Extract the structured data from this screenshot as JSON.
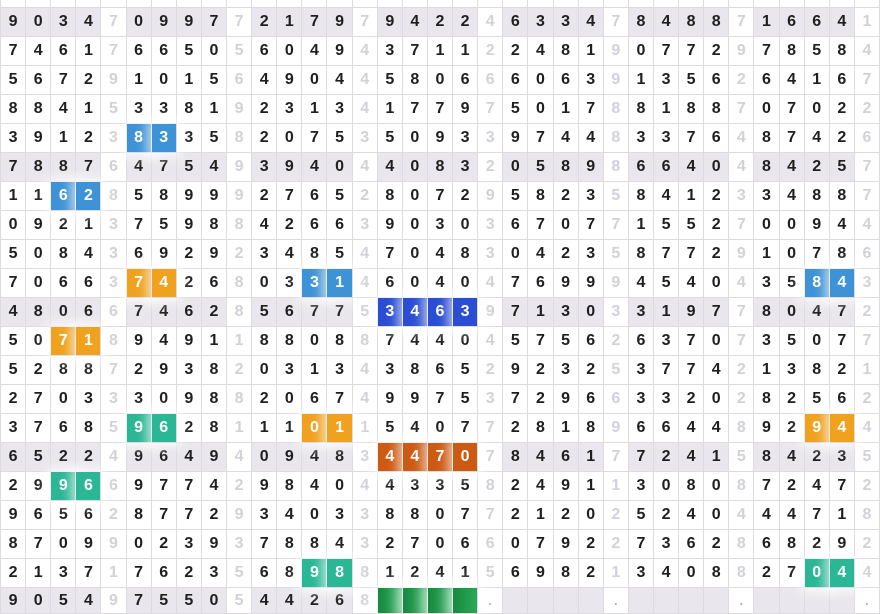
{
  "colors": {
    "highlight_blue": "#3e93d6",
    "highlight_dark_blue": "#2a4dd4",
    "highlight_orange": "#f0a11e",
    "highlight_dark_orange": "#cd5a12",
    "highlight_green": "#2ab795",
    "selection_green_dark": "#178a41",
    "selection_green_light": "#2aa957",
    "shaded_row_bg": "#e9e6ed",
    "grid_border": "#dddae0",
    "digit_color": "#1f1f1f",
    "separator_digit_color": "#d4d0d8"
  },
  "table": {
    "groups_per_row": 7,
    "digits_per_group": 4,
    "rows": [
      {
        "shaded": true,
        "groups": [
          "9034",
          "0997",
          "2179",
          "9422",
          "6334",
          "8488",
          "1664"
        ],
        "seps": [
          "7",
          "7",
          "7",
          "4",
          "7",
          "7",
          "1"
        ],
        "highlights": []
      },
      {
        "shaded": false,
        "groups": [
          "7461",
          "6650",
          "6049",
          "3711",
          "2481",
          "0772",
          "7858"
        ],
        "seps": [
          "7",
          "5",
          "4",
          "2",
          "9",
          "9",
          "4"
        ],
        "highlights": []
      },
      {
        "shaded": false,
        "groups": [
          "5672",
          "1015",
          "4904",
          "5806",
          "6063",
          "1356",
          "6416"
        ],
        "seps": [
          "9",
          "6",
          "4",
          "6",
          "9",
          "2",
          "7"
        ],
        "highlights": []
      },
      {
        "shaded": false,
        "groups": [
          "8841",
          "3381",
          "2313",
          "1779",
          "5017",
          "8188",
          "0702"
        ],
        "seps": [
          "5",
          "9",
          "4",
          "7",
          "8",
          "7",
          "2"
        ],
        "highlights": []
      },
      {
        "shaded": false,
        "groups": [
          "3912",
          "8335",
          "2075",
          "5093",
          "9744",
          "3376",
          "8742"
        ],
        "seps": [
          "3",
          "8",
          "3",
          "3",
          "8",
          "4",
          "6"
        ],
        "highlights": [
          {
            "group": 1,
            "start": 0,
            "len": 2,
            "color": "blue"
          }
        ]
      },
      {
        "shaded": true,
        "groups": [
          "7887",
          "4754",
          "3940",
          "4083",
          "0589",
          "6640",
          "8425"
        ],
        "seps": [
          "6",
          "9",
          "4",
          "2",
          "8",
          "4",
          "7"
        ],
        "highlights": []
      },
      {
        "shaded": false,
        "groups": [
          "1162",
          "5899",
          "2765",
          "8072",
          "5823",
          "8412",
          "3488"
        ],
        "seps": [
          "8",
          "9",
          "2",
          "9",
          "5",
          "3",
          "7"
        ],
        "highlights": [
          {
            "group": 0,
            "start": 2,
            "len": 2,
            "color": "blue"
          }
        ]
      },
      {
        "shaded": false,
        "groups": [
          "0921",
          "7598",
          "4266",
          "9030",
          "6707",
          "1552",
          "0094"
        ],
        "seps": [
          "3",
          "8",
          "3",
          "3",
          "7",
          "7",
          "4"
        ],
        "highlights": []
      },
      {
        "shaded": false,
        "groups": [
          "5084",
          "6929",
          "3485",
          "7048",
          "0423",
          "8772",
          "1078"
        ],
        "seps": [
          "3",
          "2",
          "4",
          "3",
          "5",
          "9",
          "6"
        ],
        "highlights": []
      },
      {
        "shaded": false,
        "groups": [
          "7066",
          "7426",
          "0331",
          "6040",
          "7699",
          "4540",
          "3584"
        ],
        "seps": [
          "3",
          "8",
          "4",
          "4",
          "9",
          "4",
          "3"
        ],
        "highlights": [
          {
            "group": 1,
            "start": 0,
            "len": 2,
            "color": "orange"
          },
          {
            "group": 2,
            "start": 2,
            "len": 2,
            "color": "blue"
          },
          {
            "group": 6,
            "start": 2,
            "len": 2,
            "color": "blue"
          }
        ]
      },
      {
        "shaded": true,
        "groups": [
          "4806",
          "7462",
          "5677",
          "3463",
          "7130",
          "3197",
          "8047"
        ],
        "seps": [
          "6",
          "8",
          "5",
          "9",
          "3",
          "7",
          "2"
        ],
        "highlights": [
          {
            "group": 3,
            "start": 0,
            "len": 4,
            "color": "dkblue"
          }
        ]
      },
      {
        "shaded": false,
        "groups": [
          "5071",
          "9491",
          "8808",
          "7440",
          "5756",
          "6370",
          "3507"
        ],
        "seps": [
          "8",
          "1",
          "8",
          "4",
          "2",
          "7",
          "7"
        ],
        "highlights": [
          {
            "group": 0,
            "start": 2,
            "len": 2,
            "color": "orange"
          }
        ]
      },
      {
        "shaded": false,
        "groups": [
          "5288",
          "2938",
          "0313",
          "3865",
          "9232",
          "3774",
          "1382"
        ],
        "seps": [
          "7",
          "2",
          "4",
          "2",
          "5",
          "2",
          "1"
        ],
        "highlights": []
      },
      {
        "shaded": false,
        "groups": [
          "2703",
          "3098",
          "2067",
          "9975",
          "7296",
          "3320",
          "8256"
        ],
        "seps": [
          "3",
          "8",
          "4",
          "3",
          "6",
          "2",
          "2"
        ],
        "highlights": []
      },
      {
        "shaded": false,
        "groups": [
          "3768",
          "9628",
          "1101",
          "5407",
          "2818",
          "6644",
          "9294"
        ],
        "seps": [
          "5",
          "1",
          "1",
          "7",
          "9",
          "8",
          "4"
        ],
        "highlights": [
          {
            "group": 1,
            "start": 0,
            "len": 2,
            "color": "green"
          },
          {
            "group": 2,
            "start": 2,
            "len": 2,
            "color": "orange"
          },
          {
            "group": 6,
            "start": 2,
            "len": 2,
            "color": "orange"
          }
        ]
      },
      {
        "shaded": true,
        "groups": [
          "6522",
          "9649",
          "0948",
          "4470",
          "8461",
          "7241",
          "8423"
        ],
        "seps": [
          "4",
          "4",
          "3",
          "7",
          "7",
          "5",
          "5"
        ],
        "highlights": [
          {
            "group": 3,
            "start": 0,
            "len": 4,
            "color": "dkorange"
          }
        ]
      },
      {
        "shaded": false,
        "groups": [
          "2996",
          "9774",
          "9840",
          "4335",
          "2491",
          "3080",
          "7247"
        ],
        "seps": [
          "6",
          "2",
          "4",
          "8",
          "1",
          "8",
          "2"
        ],
        "highlights": [
          {
            "group": 0,
            "start": 2,
            "len": 2,
            "color": "green"
          }
        ]
      },
      {
        "shaded": false,
        "groups": [
          "9656",
          "8772",
          "3403",
          "8807",
          "2120",
          "5240",
          "4471"
        ],
        "seps": [
          "2",
          "9",
          "3",
          "7",
          "2",
          "4",
          "8"
        ],
        "highlights": []
      },
      {
        "shaded": false,
        "groups": [
          "8709",
          "0239",
          "7884",
          "2706",
          "0792",
          "7362",
          "6829"
        ],
        "seps": [
          "9",
          "3",
          "3",
          "6",
          "2",
          "8",
          "2"
        ],
        "highlights": []
      },
      {
        "shaded": false,
        "groups": [
          "2137",
          "7623",
          "6898",
          "1241",
          "6982",
          "3408",
          "2704"
        ],
        "seps": [
          "1",
          "5",
          "8",
          "5",
          "1",
          "8",
          "4"
        ],
        "highlights": [
          {
            "group": 2,
            "start": 2,
            "len": 2,
            "color": "green"
          },
          {
            "group": 6,
            "start": 2,
            "len": 2,
            "color": "green"
          }
        ]
      },
      {
        "shaded": true,
        "groups": [
          "9054",
          "7550",
          "4426",
          "",
          "",
          "",
          ""
        ],
        "seps": [
          "9",
          "5",
          "8",
          ".",
          ".",
          ".",
          "."
        ],
        "highlights": [
          {
            "group": 3,
            "start": 0,
            "len": 4,
            "color": "fill"
          }
        ]
      }
    ]
  }
}
